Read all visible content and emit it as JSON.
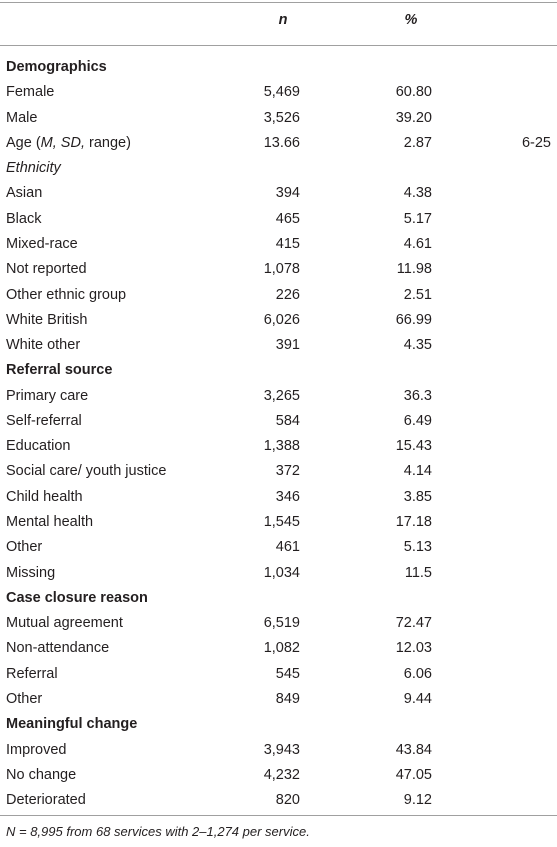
{
  "table": {
    "header": [
      "n",
      "%"
    ],
    "sections": [
      {
        "title": "Demographics",
        "rows": [
          {
            "label": "Female",
            "cells": [
              "5,469",
              "60.80"
            ]
          },
          {
            "label": "Male",
            "cells": [
              "3,526",
              "39.20"
            ]
          },
          {
            "label": [
              "Age (",
              "M, SD,",
              " range)"
            ],
            "cells": [
              "13.66",
              "2.87",
              "6-25"
            ]
          }
        ],
        "subsections": [
          {
            "title": "Ethnicity",
            "rows": [
              {
                "label": "Asian",
                "cells": [
                  "394",
                  "4.38"
                ]
              },
              {
                "label": "Black",
                "cells": [
                  "465",
                  "5.17"
                ]
              },
              {
                "label": "Mixed-race",
                "cells": [
                  "415",
                  "4.61"
                ]
              },
              {
                "label": "Not reported",
                "cells": [
                  "1,078",
                  "11.98"
                ]
              },
              {
                "label": "Other ethnic group",
                "cells": [
                  "226",
                  "2.51"
                ]
              },
              {
                "label": "White British",
                "cells": [
                  "6,026",
                  "66.99"
                ]
              },
              {
                "label": "White other",
                "cells": [
                  "391",
                  "4.35"
                ]
              }
            ]
          }
        ]
      },
      {
        "title": "Referral source",
        "rows": [
          {
            "label": "Primary care",
            "cells": [
              "3,265",
              "36.3"
            ]
          },
          {
            "label": "Self-referral",
            "cells": [
              "584",
              "6.49"
            ]
          },
          {
            "label": "Education",
            "cells": [
              "1,388",
              "15.43"
            ]
          },
          {
            "label": "Social care/ youth justice",
            "cells": [
              "372",
              "4.14"
            ]
          },
          {
            "label": "Child health",
            "cells": [
              "346",
              "3.85"
            ]
          },
          {
            "label": "Mental health",
            "cells": [
              "1,545",
              "17.18"
            ]
          },
          {
            "label": "Other",
            "cells": [
              "461",
              "5.13"
            ]
          },
          {
            "label": "Missing",
            "cells": [
              "1,034",
              "11.5"
            ]
          }
        ]
      },
      {
        "title": "Case closure reason",
        "rows": [
          {
            "label": "Mutual agreement",
            "cells": [
              "6,519",
              "72.47"
            ]
          },
          {
            "label": "Non-attendance",
            "cells": [
              "1,082",
              "12.03"
            ]
          },
          {
            "label": "Referral",
            "cells": [
              "545",
              "6.06"
            ]
          },
          {
            "label": "Other",
            "cells": [
              "849",
              "9.44"
            ]
          }
        ]
      },
      {
        "title": "Meaningful change",
        "rows": [
          {
            "label": "Improved",
            "cells": [
              "3,943",
              "43.84"
            ]
          },
          {
            "label": "No change",
            "cells": [
              "4,232",
              "47.05"
            ]
          },
          {
            "label": "Deteriorated",
            "cells": [
              "820",
              "9.12"
            ]
          }
        ]
      }
    ],
    "footnote": "N = 8,995 from 68 services with 2–1,274 per service."
  }
}
